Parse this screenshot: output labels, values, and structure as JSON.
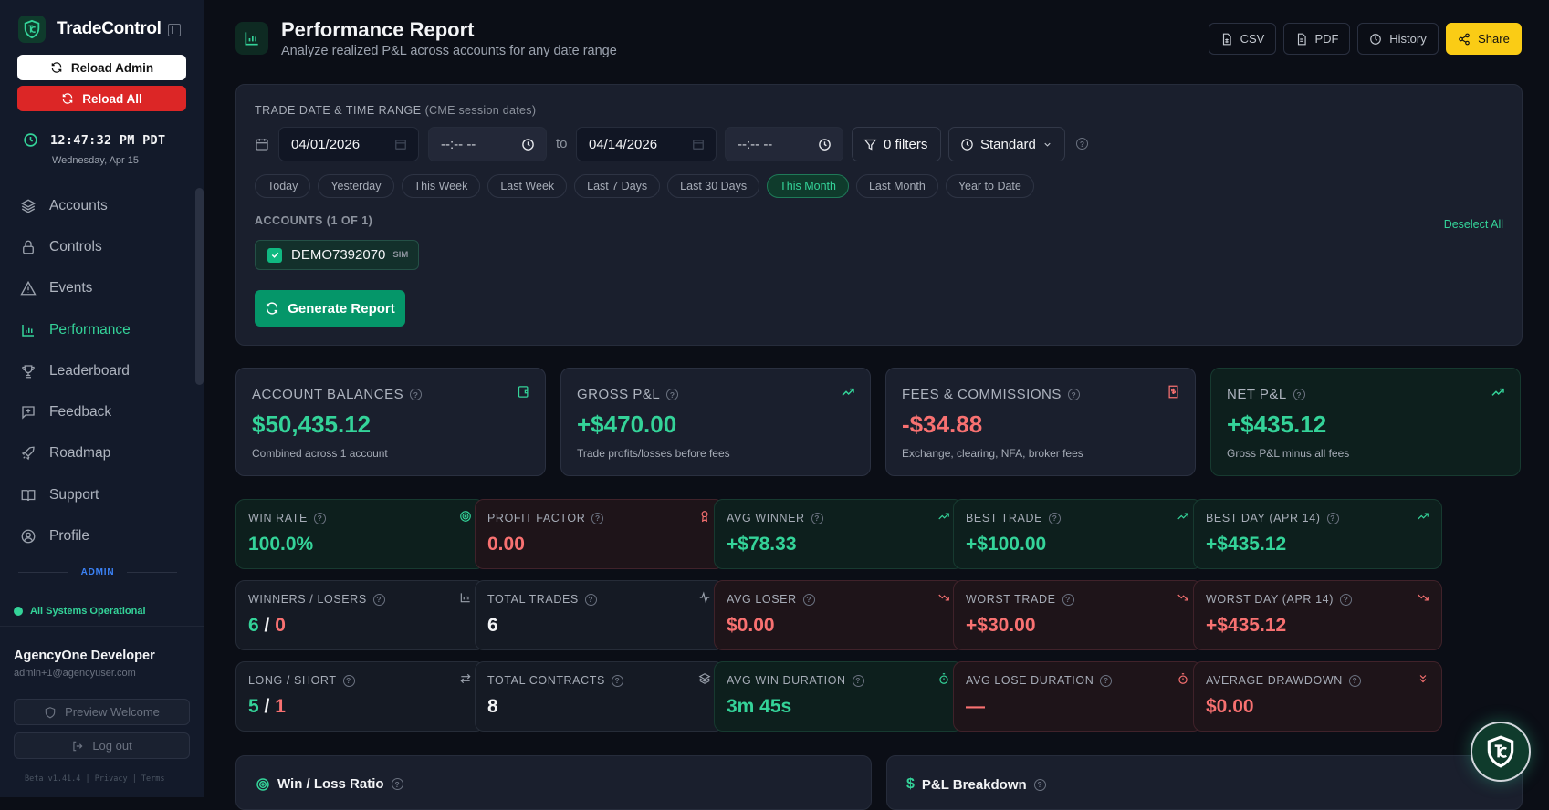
{
  "app": {
    "name": "TradeControl"
  },
  "sidebar": {
    "reload_admin": "Reload Admin",
    "reload_all": "Reload All",
    "clock_time": "12:47:32 PM PDT",
    "clock_date": "Wednesday, Apr 15",
    "items": [
      {
        "label": "Accounts",
        "icon": "layers-icon"
      },
      {
        "label": "Controls",
        "icon": "lock-icon"
      },
      {
        "label": "Events",
        "icon": "alert-triangle-icon"
      },
      {
        "label": "Performance",
        "icon": "bar-chart-icon",
        "active": true
      },
      {
        "label": "Leaderboard",
        "icon": "trophy-icon"
      },
      {
        "label": "Feedback",
        "icon": "message-plus-icon"
      },
      {
        "label": "Roadmap",
        "icon": "rocket-icon"
      },
      {
        "label": "Support",
        "icon": "book-icon"
      },
      {
        "label": "Profile",
        "icon": "user-circle-icon"
      }
    ],
    "section_label": "ADMIN",
    "status": "All Systems Operational",
    "user_name": "AgencyOne Developer",
    "user_email": "admin+1@agencyuser.com",
    "preview_welcome": "Preview Welcome",
    "logout": "Log out",
    "footer": "Beta v1.41.4 | Privacy | Terms"
  },
  "header": {
    "title": "Performance Report",
    "subtitle": "Analyze realized P&L across accounts for any date range",
    "csv": "CSV",
    "pdf": "PDF",
    "history": "History",
    "share": "Share"
  },
  "filters": {
    "range_label": "TRADE DATE & TIME RANGE",
    "range_note": "(CME session dates)",
    "start_date": "04/01/2026",
    "start_time": "--:-- --",
    "to": "to",
    "end_date": "04/14/2026",
    "end_time": "--:-- --",
    "filters_btn": "0 filters",
    "mode": "Standard",
    "presets": [
      "Today",
      "Yesterday",
      "This Week",
      "Last Week",
      "Last 7 Days",
      "Last 30 Days",
      "This Month",
      "Last Month",
      "Year to Date"
    ],
    "active_preset": "This Month",
    "accounts_label": "ACCOUNTS (1 OF 1)",
    "deselect_all": "Deselect All",
    "account": {
      "name": "DEMO7392070",
      "tag": "SIM",
      "checked": true
    },
    "generate": "Generate Report"
  },
  "summary": [
    {
      "label": "ACCOUNT BALANCES",
      "value": "$50,435.12",
      "desc": "Combined across 1 account",
      "tone": "green",
      "icon": "wallet-icon"
    },
    {
      "label": "GROSS P&L",
      "value": "+$470.00",
      "desc": "Trade profits/losses before fees",
      "tone": "green",
      "icon": "trending-up-icon"
    },
    {
      "label": "FEES & COMMISSIONS",
      "value": "-$34.88",
      "desc": "Exchange, clearing, NFA, broker fees",
      "tone": "red",
      "icon": "receipt-icon"
    },
    {
      "label": "NET P&L",
      "value": "+$435.12",
      "desc": "Gross P&L minus all fees",
      "tone": "green",
      "icon": "trending-up-icon"
    }
  ],
  "metrics": [
    {
      "label": "WIN RATE",
      "value": "100.0%",
      "bg": "green",
      "icon": "target-icon"
    },
    {
      "label": "PROFIT FACTOR",
      "value": "0.00",
      "bg": "red",
      "icon": "award-icon"
    },
    {
      "label": "AVG WINNER",
      "value": "+$78.33",
      "bg": "green",
      "icon": "trending-up-icon"
    },
    {
      "label": "BEST TRADE",
      "value": "+$100.00",
      "bg": "green",
      "icon": "trending-up-icon"
    },
    {
      "label": "BEST DAY (APR 14)",
      "value": "+$435.12",
      "bg": "green",
      "icon": "trending-up-icon"
    },
    {
      "label": "WINNERS / LOSERS",
      "value_a": "6",
      "value_b": "0",
      "bg": "neutral",
      "icon": "bar-chart-icon"
    },
    {
      "label": "TOTAL TRADES",
      "value": "6",
      "bg": "neutral",
      "icon": "activity-icon"
    },
    {
      "label": "AVG LOSER",
      "value": "$0.00",
      "bg": "red",
      "icon": "trending-down-icon"
    },
    {
      "label": "WORST TRADE",
      "value": "+$30.00",
      "bg": "red",
      "icon": "trending-down-icon"
    },
    {
      "label": "WORST DAY (APR 14)",
      "value": "+$435.12",
      "bg": "red",
      "icon": "trending-down-icon"
    },
    {
      "label": "LONG / SHORT",
      "value_a": "5",
      "value_b": "1",
      "bg": "neutral",
      "icon": "arrows-swap-icon"
    },
    {
      "label": "TOTAL CONTRACTS",
      "value": "8",
      "bg": "neutral",
      "icon": "layers-icon"
    },
    {
      "label": "AVG WIN DURATION",
      "value": "3m 45s",
      "bg": "green",
      "icon": "timer-icon"
    },
    {
      "label": "AVG LOSE DURATION",
      "value": "—",
      "bg": "red",
      "icon": "timer-icon"
    },
    {
      "label": "AVERAGE DRAWDOWN",
      "value": "$0.00",
      "bg": "red",
      "icon": "chevrons-down-icon"
    }
  ],
  "sections": {
    "win_loss": "Win / Loss Ratio",
    "pnl_breakdown": "P&L Breakdown"
  },
  "colors": {
    "accent": "#34d399",
    "danger": "#f87171",
    "share": "#facc15",
    "reload_all": "#dc2626"
  }
}
